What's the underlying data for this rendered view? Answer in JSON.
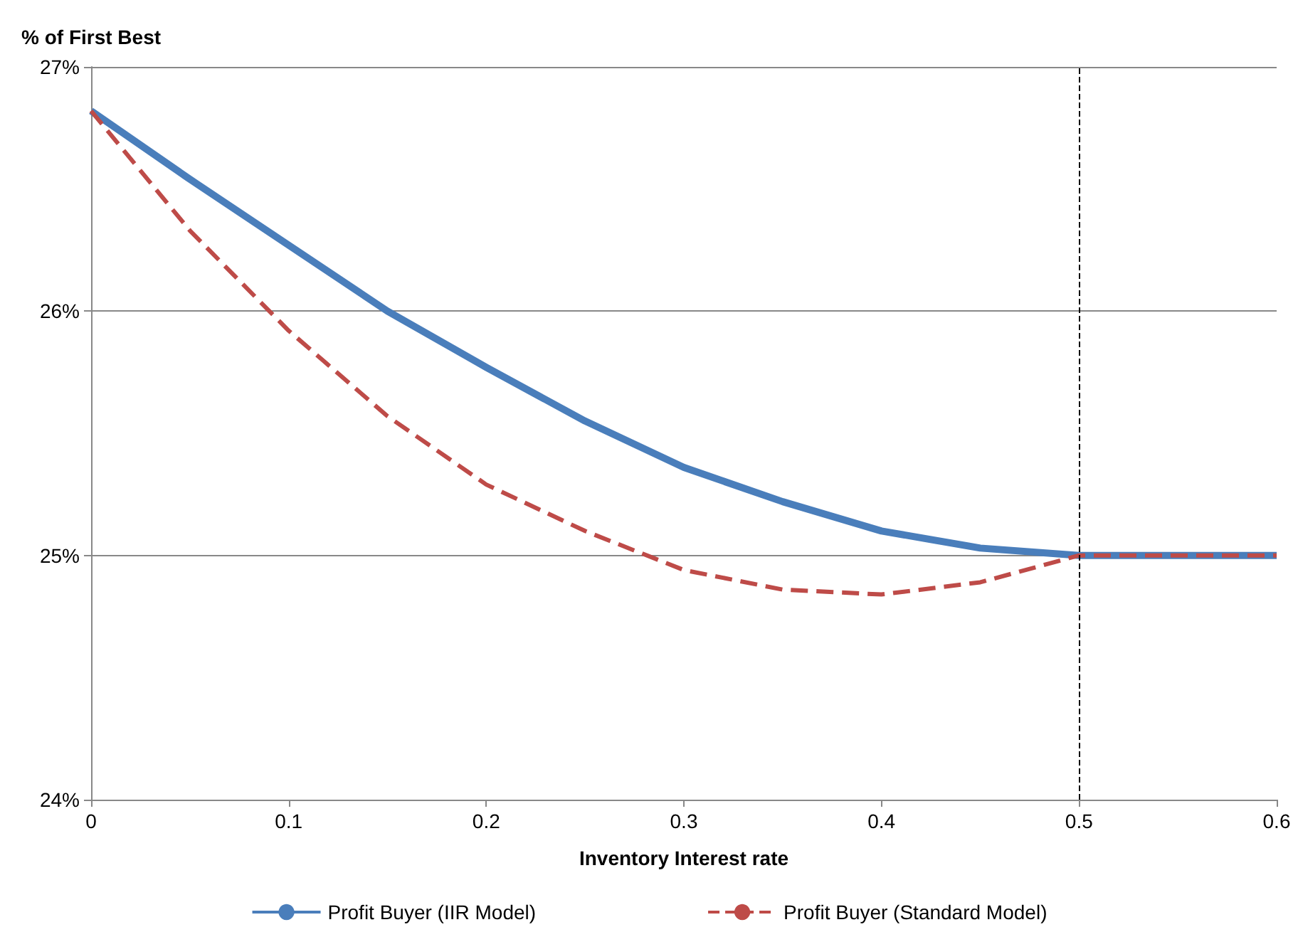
{
  "chart_data": {
    "type": "line",
    "ylabel": "% of First Best",
    "xlabel": "Inventory Interest rate",
    "xlim": [
      0,
      0.6
    ],
    "xticks": [
      0,
      0.1,
      0.2,
      0.3,
      0.4,
      0.5,
      0.6
    ],
    "ylim": [
      24,
      27
    ],
    "yticks": [
      {
        "value": 24,
        "label": "24%"
      },
      {
        "value": 25,
        "label": "25%"
      },
      {
        "value": 26,
        "label": "26%"
      },
      {
        "value": 27,
        "label": "27%"
      }
    ],
    "x": [
      0,
      0.05,
      0.1,
      0.15,
      0.2,
      0.25,
      0.3,
      0.35,
      0.4,
      0.45,
      0.5,
      0.55,
      0.6
    ],
    "series": [
      {
        "name": "Profit Buyer (IIR Model)",
        "color": "#4a7ebb",
        "line_style": "solid",
        "values": [
          26.82,
          26.54,
          26.27,
          26.0,
          25.77,
          25.55,
          25.36,
          25.22,
          25.1,
          25.03,
          25.0,
          25.0,
          25.0
        ]
      },
      {
        "name": "Profit Buyer (Standard Model)",
        "color": "#be4b48",
        "line_style": "dashed",
        "values": [
          26.82,
          26.33,
          25.92,
          25.57,
          25.29,
          25.1,
          24.94,
          24.86,
          24.84,
          24.89,
          25.0,
          25.0,
          25.0
        ]
      }
    ],
    "ref_lines": [
      {
        "axis": "x",
        "value": 0.5,
        "color": "#000000",
        "line_style": "dashed"
      }
    ],
    "grid": "y",
    "legend": "bottom",
    "marker": "none"
  }
}
